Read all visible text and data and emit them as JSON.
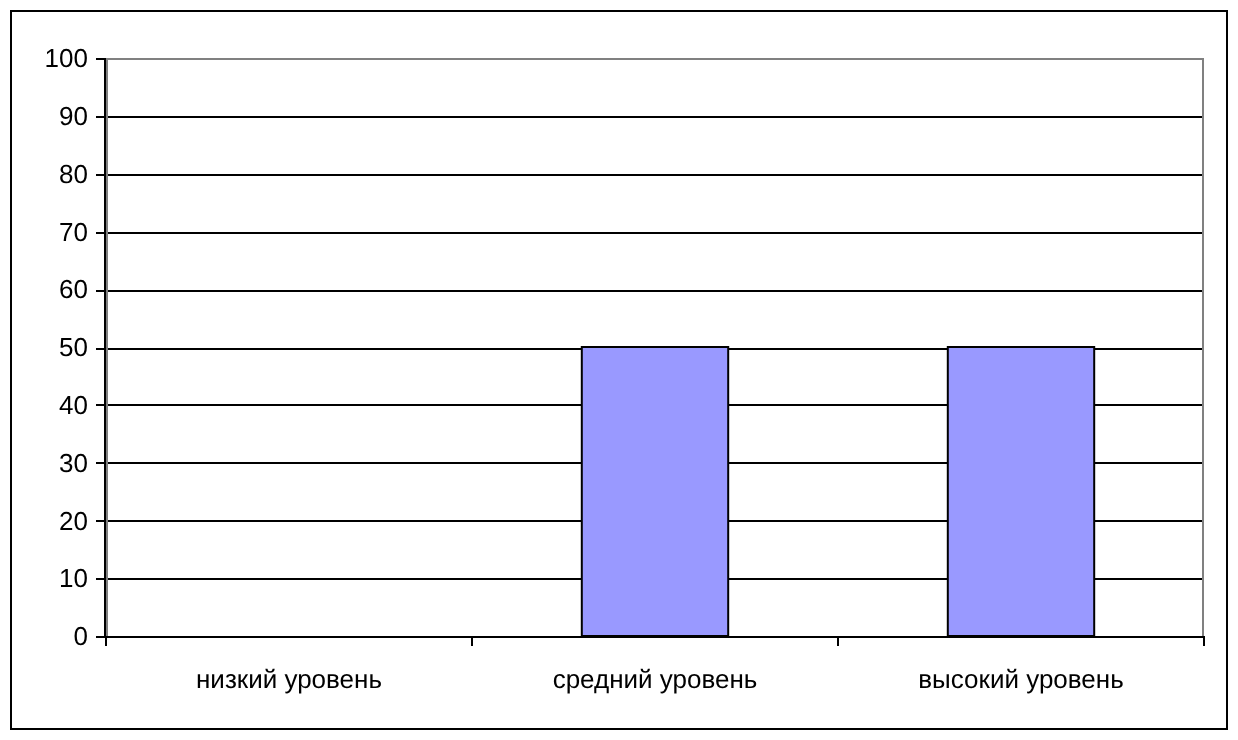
{
  "chart_data": {
    "type": "bar",
    "categories": [
      "низкий уровень",
      "средний уровень",
      "высокий уровень"
    ],
    "values": [
      0,
      50,
      50
    ],
    "color": "#9999ff",
    "ylim": [
      0,
      100
    ],
    "yticks": [
      0,
      10,
      20,
      30,
      40,
      50,
      60,
      70,
      80,
      90,
      100
    ],
    "grid": "y"
  }
}
